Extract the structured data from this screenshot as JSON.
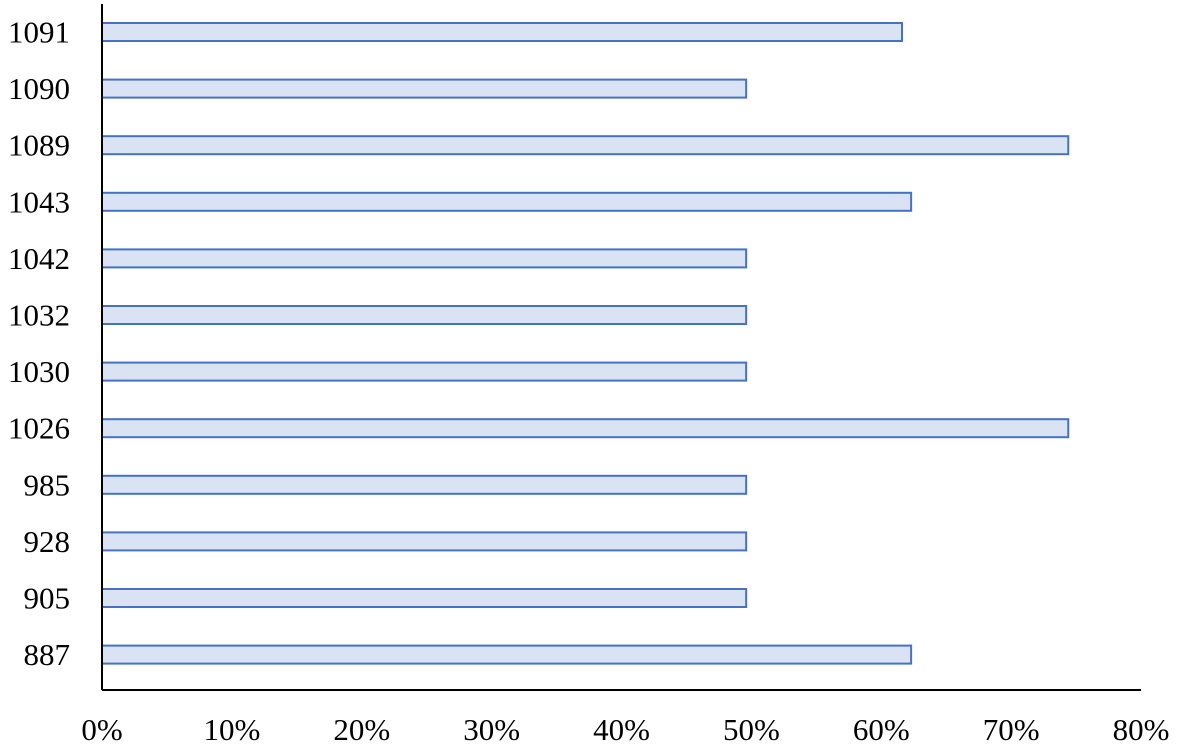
{
  "chart_data": {
    "type": "bar",
    "orientation": "horizontal",
    "title": "",
    "xlabel": "",
    "ylabel": "",
    "categories": [
      "1091",
      "1090",
      "1089",
      "1043",
      "1042",
      "1032",
      "1030",
      "1026",
      "985",
      "928",
      "905",
      "887"
    ],
    "values": [
      61.6,
      49.6,
      74.4,
      62.3,
      49.6,
      49.6,
      49.6,
      74.4,
      49.6,
      49.6,
      49.6,
      62.3
    ],
    "xlim": [
      0,
      80
    ],
    "xticks": [
      0,
      10,
      20,
      30,
      40,
      50,
      60,
      70,
      80
    ],
    "xtick_labels": [
      "0%",
      "10%",
      "20%",
      "30%",
      "40%",
      "50%",
      "60%",
      "70%",
      "80%"
    ],
    "grid": false,
    "legend": "none",
    "colors": {
      "bar_fill": "#dae3f3",
      "bar_stroke": "#4472c4",
      "axis": "#000000",
      "text": "#000000"
    }
  }
}
